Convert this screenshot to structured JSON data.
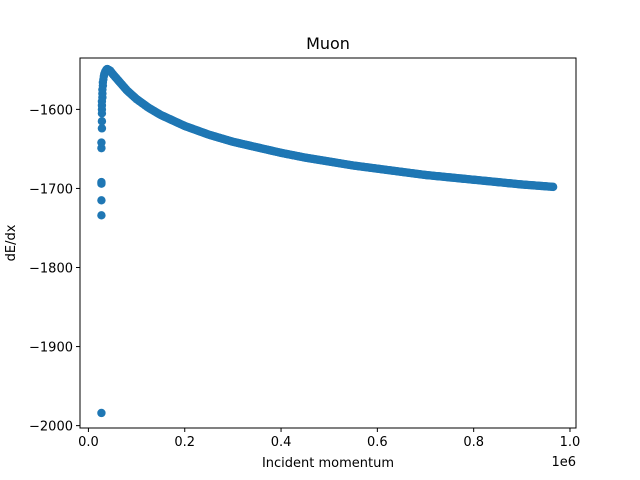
{
  "chart_data": {
    "type": "scatter",
    "title": "Muon",
    "xlabel": "Incident momentum",
    "ylabel": "dE/dx",
    "x_offset_text": "1e6",
    "xlim": [
      -0.0175,
      1.0125
    ],
    "ylim": [
      -2003,
      -1535
    ],
    "x_ticks": [
      0.0,
      0.2,
      0.4,
      0.6,
      0.8,
      1.0
    ],
    "x_tick_labels": [
      "0.0",
      "0.2",
      "0.4",
      "0.6",
      "0.8",
      "1.0"
    ],
    "y_ticks": [
      -2000,
      -1900,
      -1800,
      -1700,
      -1600
    ],
    "y_tick_labels": [
      "−2000",
      "−1900",
      "−1800",
      "−1700",
      "−1600"
    ],
    "marker_color": "#1f77b4",
    "grid": false,
    "series": [
      {
        "outliers": [
          [
            0.027,
            -1984
          ],
          [
            0.027,
            -1734
          ],
          [
            0.027,
            -1715
          ],
          [
            0.027,
            -1694
          ],
          [
            0.027,
            -1692
          ],
          [
            0.027,
            -1649
          ],
          [
            0.027,
            -1642
          ],
          [
            0.028,
            -1624
          ],
          [
            0.028,
            -1615
          ],
          [
            0.028,
            -1605
          ],
          [
            0.028,
            -1600
          ],
          [
            0.028,
            -1595
          ],
          [
            0.028,
            -1590
          ],
          [
            0.029,
            -1585
          ],
          [
            0.029,
            -1580
          ],
          [
            0.029,
            -1575
          ],
          [
            0.03,
            -1570
          ],
          [
            0.03,
            -1566
          ],
          [
            0.031,
            -1562
          ],
          [
            0.032,
            -1558
          ],
          [
            0.033,
            -1555
          ],
          [
            0.035,
            -1552
          ],
          [
            0.037,
            -1550
          ],
          [
            0.039,
            -1549
          ]
        ],
        "curve_points": [
          [
            0.039,
            -1549
          ],
          [
            0.045,
            -1551
          ],
          [
            0.05,
            -1555
          ],
          [
            0.06,
            -1562
          ],
          [
            0.07,
            -1569
          ],
          [
            0.08,
            -1576
          ],
          [
            0.1,
            -1587
          ],
          [
            0.125,
            -1598
          ],
          [
            0.15,
            -1607
          ],
          [
            0.2,
            -1621
          ],
          [
            0.25,
            -1632
          ],
          [
            0.3,
            -1641
          ],
          [
            0.35,
            -1648
          ],
          [
            0.4,
            -1655
          ],
          [
            0.45,
            -1661
          ],
          [
            0.5,
            -1666
          ],
          [
            0.55,
            -1671
          ],
          [
            0.6,
            -1675
          ],
          [
            0.65,
            -1679
          ],
          [
            0.7,
            -1683
          ],
          [
            0.75,
            -1686
          ],
          [
            0.8,
            -1689
          ],
          [
            0.85,
            -1692
          ],
          [
            0.9,
            -1695
          ],
          [
            0.965,
            -1698
          ]
        ]
      }
    ]
  }
}
